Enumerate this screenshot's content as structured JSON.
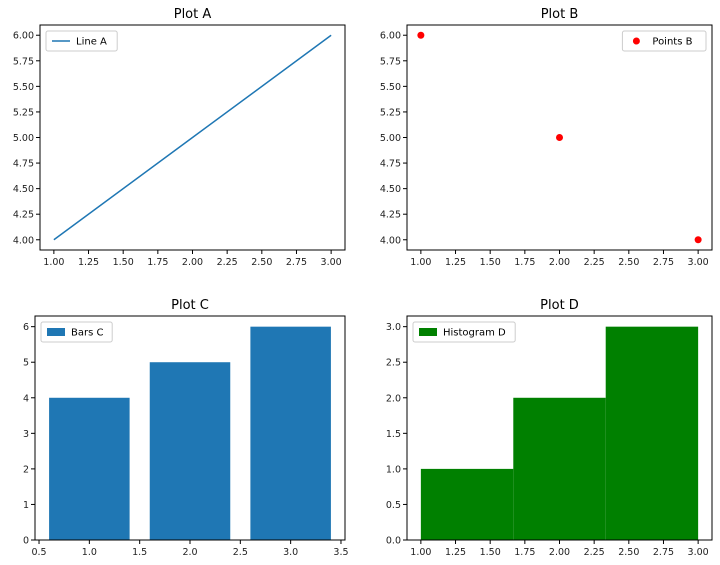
{
  "chart_data": [
    {
      "type": "line",
      "title": "Plot A",
      "xlabel": "",
      "ylabel": "",
      "x": [
        1,
        2,
        3
      ],
      "series": [
        {
          "name": "Line A",
          "values": [
            4,
            5,
            6
          ],
          "color": "#1f77b4"
        }
      ],
      "xlim": [
        0.9,
        3.1
      ],
      "ylim": [
        3.9,
        6.1
      ],
      "xticks": [
        1.0,
        1.25,
        1.5,
        1.75,
        2.0,
        2.25,
        2.5,
        2.75,
        3.0
      ],
      "xtick_labels": [
        "1.00",
        "1.25",
        "1.50",
        "1.75",
        "2.00",
        "2.25",
        "2.50",
        "2.75",
        "3.00"
      ],
      "yticks": [
        4.0,
        4.25,
        4.5,
        4.75,
        5.0,
        5.25,
        5.5,
        5.75,
        6.0
      ],
      "ytick_labels": [
        "4.00",
        "4.25",
        "4.50",
        "4.75",
        "5.00",
        "5.25",
        "5.50",
        "5.75",
        "6.00"
      ],
      "legend": "upper-left",
      "grid": false
    },
    {
      "type": "scatter",
      "title": "Plot B",
      "xlabel": "",
      "ylabel": "",
      "x": [
        1,
        2,
        3
      ],
      "series": [
        {
          "name": "Points B",
          "values": [
            6,
            5,
            4
          ],
          "color": "#ff0000"
        }
      ],
      "xlim": [
        0.9,
        3.1
      ],
      "ylim": [
        3.9,
        6.1
      ],
      "xticks": [
        1.0,
        1.25,
        1.5,
        1.75,
        2.0,
        2.25,
        2.5,
        2.75,
        3.0
      ],
      "xtick_labels": [
        "1.00",
        "1.25",
        "1.50",
        "1.75",
        "2.00",
        "2.25",
        "2.50",
        "2.75",
        "3.00"
      ],
      "yticks": [
        4.0,
        4.25,
        4.5,
        4.75,
        5.0,
        5.25,
        5.5,
        5.75,
        6.0
      ],
      "ytick_labels": [
        "4.00",
        "4.25",
        "4.50",
        "4.75",
        "5.00",
        "5.25",
        "5.50",
        "5.75",
        "6.00"
      ],
      "legend": "upper-right",
      "grid": false
    },
    {
      "type": "bar",
      "title": "Plot C",
      "xlabel": "",
      "ylabel": "",
      "x": [
        1,
        2,
        3
      ],
      "bar_width": 0.8,
      "series": [
        {
          "name": "Bars C",
          "values": [
            4,
            5,
            6
          ],
          "color": "#1f77b4"
        }
      ],
      "xlim": [
        0.46,
        3.54
      ],
      "ylim": [
        0,
        6.3
      ],
      "xticks": [
        0.5,
        1.0,
        1.5,
        2.0,
        2.5,
        3.0,
        3.5
      ],
      "xtick_labels": [
        "0.5",
        "1.0",
        "1.5",
        "2.0",
        "2.5",
        "3.0",
        "3.5"
      ],
      "yticks": [
        0,
        1,
        2,
        3,
        4,
        5,
        6
      ],
      "ytick_labels": [
        "0",
        "1",
        "2",
        "3",
        "4",
        "5",
        "6"
      ],
      "legend": "upper-left",
      "grid": false
    },
    {
      "type": "bar",
      "title": "Plot D",
      "xlabel": "",
      "ylabel": "",
      "bins": [
        [
          1.0,
          1.6667
        ],
        [
          1.6667,
          2.3333
        ],
        [
          2.3333,
          3.0
        ]
      ],
      "series": [
        {
          "name": "Histogram D",
          "values": [
            1,
            2,
            3
          ],
          "color": "#008000"
        }
      ],
      "xlim": [
        0.9,
        3.1
      ],
      "ylim": [
        0,
        3.15
      ],
      "xticks": [
        1.0,
        1.25,
        1.5,
        1.75,
        2.0,
        2.25,
        2.5,
        2.75,
        3.0
      ],
      "xtick_labels": [
        "1.00",
        "1.25",
        "1.50",
        "1.75",
        "2.00",
        "2.25",
        "2.50",
        "2.75",
        "3.00"
      ],
      "yticks": [
        0,
        0.5,
        1.0,
        1.5,
        2.0,
        2.5,
        3.0
      ],
      "ytick_labels": [
        "0.0",
        "0.5",
        "1.0",
        "1.5",
        "2.0",
        "2.5",
        "3.0"
      ],
      "legend": "upper-left",
      "grid": false
    }
  ]
}
